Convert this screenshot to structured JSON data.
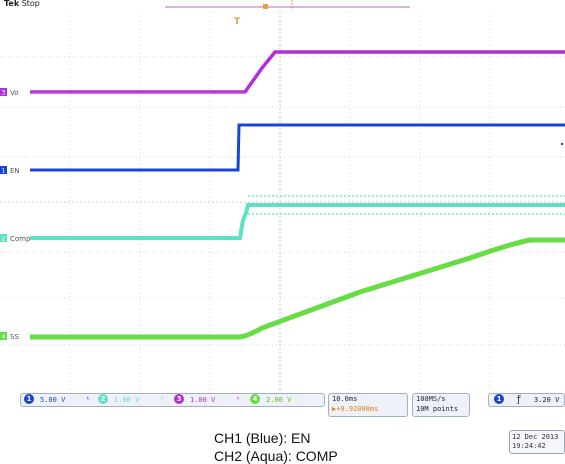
{
  "header": {
    "brand": "Tek",
    "state": "Stop",
    "trigger_marker_label": "T"
  },
  "channels": [
    {
      "id": "ch1",
      "number": "1",
      "label": "EN",
      "color": "#1a44d4",
      "scale": "5.00 V"
    },
    {
      "id": "ch2",
      "number": "2",
      "label": "Comp",
      "color": "#5fe0c4",
      "scale": "1.00 V"
    },
    {
      "id": "ch3",
      "number": "3",
      "label": "Vo",
      "color": "#b22fd6",
      "scale": "1.00 V"
    },
    {
      "id": "ch4",
      "number": "4",
      "label": "SS",
      "color": "#66dd44",
      "scale": "2.00 V"
    }
  ],
  "timebase": {
    "scale": "10.0ms",
    "delay": "▶+9.92000ms"
  },
  "acquisition": {
    "rate": "100MS/s",
    "record": "10M points"
  },
  "trigger": {
    "channel": "1",
    "slope_symbol": "ƒ",
    "level": "3.20 V"
  },
  "datetime": {
    "date": "12 Dec 2013",
    "time": "19:24:42"
  },
  "caption": {
    "line1": "CH1 (Blue): EN",
    "line2": "CH2 (Aqua): COMP"
  }
}
